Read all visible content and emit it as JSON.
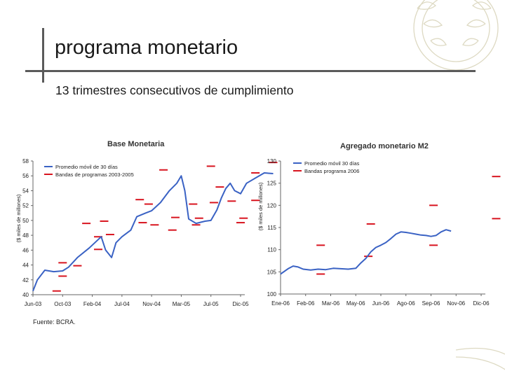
{
  "slide": {
    "title": "programa monetario",
    "subtitle": "13 trimestres consecutivos de cumplimiento",
    "source": "Fuente: BCRA.",
    "accent_color": "#5a5a5a"
  },
  "chart_data": [
    {
      "type": "line",
      "title": "Base Monetaria",
      "ylabel": "($ miles de millones)",
      "ylim": [
        40,
        58
      ],
      "yticks": [
        40,
        42,
        44,
        46,
        48,
        50,
        52,
        54,
        56,
        58
      ],
      "xticks": [
        "Jun-03",
        "Oct-03",
        "Feb-04",
        "Jul-04",
        "Nov-04",
        "Mar-05",
        "Jul-05",
        "Dic-05"
      ],
      "legend": [
        "Promedio móvil de 30 días",
        "Bandas de programas 2003-2005"
      ],
      "series": [
        {
          "name": "Promedio móvil de 30 días",
          "color": "#3a62c4",
          "points": [
            [
              0.0,
              40.5
            ],
            [
              0.15,
              42.0
            ],
            [
              0.4,
              43.3
            ],
            [
              0.7,
              43.1
            ],
            [
              1.0,
              43.2
            ],
            [
              1.2,
              43.7
            ],
            [
              1.5,
              45.0
            ],
            [
              1.9,
              46.3
            ],
            [
              2.3,
              47.8
            ],
            [
              2.45,
              46.0
            ],
            [
              2.65,
              45.0
            ],
            [
              2.8,
              47.0
            ],
            [
              3.0,
              47.8
            ],
            [
              3.3,
              48.7
            ],
            [
              3.5,
              50.5
            ],
            [
              3.8,
              51.0
            ],
            [
              4.0,
              51.3
            ],
            [
              4.3,
              52.4
            ],
            [
              4.6,
              54.0
            ],
            [
              4.85,
              55.0
            ],
            [
              5.0,
              56.0
            ],
            [
              5.12,
              54.0
            ],
            [
              5.25,
              50.2
            ],
            [
              5.5,
              49.6
            ],
            [
              5.8,
              49.9
            ],
            [
              6.0,
              50.0
            ],
            [
              6.2,
              51.4
            ],
            [
              6.35,
              53.0
            ],
            [
              6.5,
              54.3
            ],
            [
              6.65,
              55.0
            ],
            [
              6.8,
              54.0
            ],
            [
              7.0,
              53.6
            ],
            [
              7.2,
              55.0
            ],
            [
              7.5,
              55.7
            ],
            [
              7.8,
              56.4
            ],
            [
              8.1,
              56.3
            ]
          ]
        }
      ],
      "bands": [
        [
          0.8,
          40.5
        ],
        [
          1.0,
          44.3
        ],
        [
          1.0,
          42.5
        ],
        [
          1.5,
          43.9
        ],
        [
          1.8,
          49.6
        ],
        [
          2.2,
          47.8
        ],
        [
          2.2,
          46.1
        ],
        [
          2.4,
          49.9
        ],
        [
          2.6,
          48.1
        ],
        [
          3.6,
          52.8
        ],
        [
          3.7,
          49.7
        ],
        [
          3.9,
          52.2
        ],
        [
          4.1,
          49.4
        ],
        [
          4.4,
          56.8
        ],
        [
          4.7,
          48.7
        ],
        [
          4.8,
          50.4
        ],
        [
          5.4,
          52.2
        ],
        [
          5.5,
          49.4
        ],
        [
          5.6,
          50.3
        ],
        [
          6.0,
          57.3
        ],
        [
          6.1,
          52.4
        ],
        [
          6.3,
          54.5
        ],
        [
          6.7,
          52.6
        ],
        [
          7.0,
          49.7
        ],
        [
          7.1,
          50.3
        ],
        [
          7.5,
          56.4
        ],
        [
          7.5,
          52.7
        ],
        [
          8.1,
          57.8
        ]
      ]
    },
    {
      "type": "line",
      "title": "Agregado monetario M2",
      "ylabel": "($ miles de millones)",
      "ylim": [
        100,
        130
      ],
      "yticks": [
        100,
        105,
        110,
        115,
        120,
        125,
        130
      ],
      "xticks": [
        "Ene-06",
        "Feb-06",
        "Mar-06",
        "May-06",
        "Jun-06",
        "Ago-06",
        "Sep-06",
        "Nov-06",
        "Dic-06"
      ],
      "legend": [
        "Promedio móvil 30 días",
        "Bandas programa 2006"
      ],
      "series": [
        {
          "name": "Promedio móvil 30 días",
          "color": "#3a62c4",
          "points": [
            [
              0.0,
              104.5
            ],
            [
              0.3,
              105.7
            ],
            [
              0.5,
              106.3
            ],
            [
              0.7,
              106.1
            ],
            [
              0.9,
              105.6
            ],
            [
              1.2,
              105.4
            ],
            [
              1.5,
              105.6
            ],
            [
              1.8,
              105.5
            ],
            [
              2.1,
              105.8
            ],
            [
              2.4,
              105.7
            ],
            [
              2.7,
              105.6
            ],
            [
              3.0,
              105.8
            ],
            [
              3.2,
              107.0
            ],
            [
              3.4,
              108.0
            ],
            [
              3.6,
              109.5
            ],
            [
              3.8,
              110.5
            ],
            [
              4.0,
              111.0
            ],
            [
              4.2,
              111.6
            ],
            [
              4.4,
              112.5
            ],
            [
              4.6,
              113.5
            ],
            [
              4.8,
              114.0
            ],
            [
              5.0,
              113.9
            ],
            [
              5.2,
              113.7
            ],
            [
              5.4,
              113.5
            ],
            [
              5.6,
              113.3
            ],
            [
              5.8,
              113.2
            ],
            [
              6.0,
              113.0
            ],
            [
              6.2,
              113.2
            ],
            [
              6.4,
              114.0
            ],
            [
              6.6,
              114.5
            ],
            [
              6.8,
              114.2
            ]
          ]
        }
      ],
      "bands": [
        [
          1.6,
          111.0
        ],
        [
          1.6,
          104.5
        ],
        [
          3.6,
          115.8
        ],
        [
          3.5,
          108.5
        ],
        [
          6.1,
          120.0
        ],
        [
          6.1,
          111.0
        ],
        [
          8.6,
          126.5
        ],
        [
          8.6,
          117.0
        ]
      ]
    }
  ]
}
